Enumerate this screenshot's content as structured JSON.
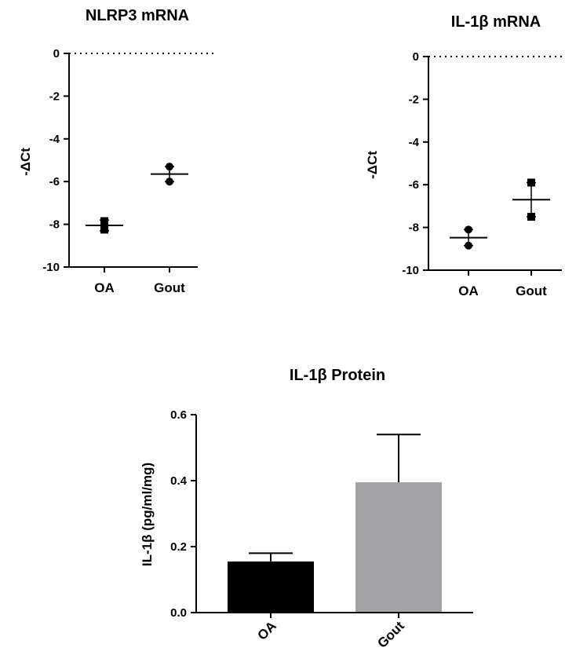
{
  "chart_data": [
    {
      "type": "scatter",
      "title": "NLRP3 mRNA",
      "ylabel": "-ΔCt",
      "ylim": [
        -10,
        0
      ],
      "yticks": [
        0,
        -2,
        -4,
        -6,
        -8,
        -10
      ],
      "categories": [
        "OA",
        "Gout"
      ],
      "points": [
        {
          "category": "OA",
          "values": [
            -7.85,
            -8.25
          ],
          "marker": "square"
        },
        {
          "category": "Gout",
          "values": [
            -5.3,
            -6.0
          ],
          "marker": "circle"
        }
      ],
      "mean": [
        -8.05,
        -5.65
      ],
      "error": [
        [
          -8.3,
          -7.8
        ],
        [
          -6.0,
          -5.3
        ]
      ],
      "reference_line": 0,
      "colors": {
        "marker": "#000000"
      }
    },
    {
      "type": "scatter",
      "title": "IL-1β mRNA",
      "ylabel": "-ΔCt",
      "ylim": [
        -10,
        0
      ],
      "yticks": [
        0,
        -2,
        -4,
        -6,
        -8,
        -10
      ],
      "categories": [
        "OA",
        "Gout"
      ],
      "points": [
        {
          "category": "OA",
          "values": [
            -8.1,
            -8.85
          ],
          "marker": "circle"
        },
        {
          "category": "Gout",
          "values": [
            -5.9,
            -7.5
          ],
          "marker": "square"
        }
      ],
      "mean": [
        -8.48,
        -6.7
      ],
      "error": [
        [
          -8.85,
          -8.1
        ],
        [
          -7.5,
          -5.9
        ]
      ],
      "reference_line": 0,
      "colors": {
        "marker": "#000000"
      }
    },
    {
      "type": "bar",
      "title": "IL-1β Protein",
      "ylabel": "IL-1β (pg/ml/mg)",
      "ylim": [
        0,
        0.6
      ],
      "yticks": [
        "0.0",
        "0.2",
        "0.4",
        "0.6"
      ],
      "categories": [
        "OA",
        "Gout"
      ],
      "values": [
        0.155,
        0.395
      ],
      "error_upper": [
        0.18,
        0.54
      ],
      "colors": {
        "OA": "#000000",
        "Gout": "#a3a3a6"
      }
    }
  ]
}
